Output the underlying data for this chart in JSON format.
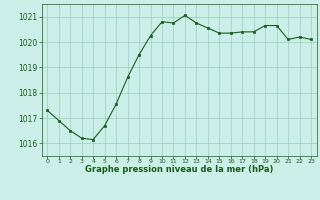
{
  "x": [
    0,
    1,
    2,
    3,
    4,
    5,
    6,
    7,
    8,
    9,
    10,
    11,
    12,
    13,
    14,
    15,
    16,
    17,
    18,
    19,
    20,
    21,
    22,
    23
  ],
  "y": [
    1017.3,
    1016.9,
    1016.5,
    1016.2,
    1016.15,
    1016.7,
    1017.55,
    1018.6,
    1019.5,
    1020.25,
    1020.8,
    1020.75,
    1021.05,
    1020.75,
    1020.55,
    1020.35,
    1020.35,
    1020.4,
    1020.4,
    1020.65,
    1020.65,
    1020.1,
    1020.2,
    1020.1
  ],
  "line_color": "#1a5c1a",
  "marker": "s",
  "marker_size": 2.0,
  "bg_color": "#cceee8",
  "grid_color": "#99ccbb",
  "xlabel": "Graphe pression niveau de la mer (hPa)",
  "xlabel_color": "#1a5c1a",
  "tick_color": "#1a5c1a",
  "ylim": [
    1015.5,
    1021.5
  ],
  "yticks": [
    1016,
    1017,
    1018,
    1019,
    1020,
    1021
  ],
  "xticks": [
    0,
    1,
    2,
    3,
    4,
    5,
    6,
    7,
    8,
    9,
    10,
    11,
    12,
    13,
    14,
    15,
    16,
    17,
    18,
    19,
    20,
    21,
    22,
    23
  ],
  "xlim": [
    -0.5,
    23.5
  ]
}
